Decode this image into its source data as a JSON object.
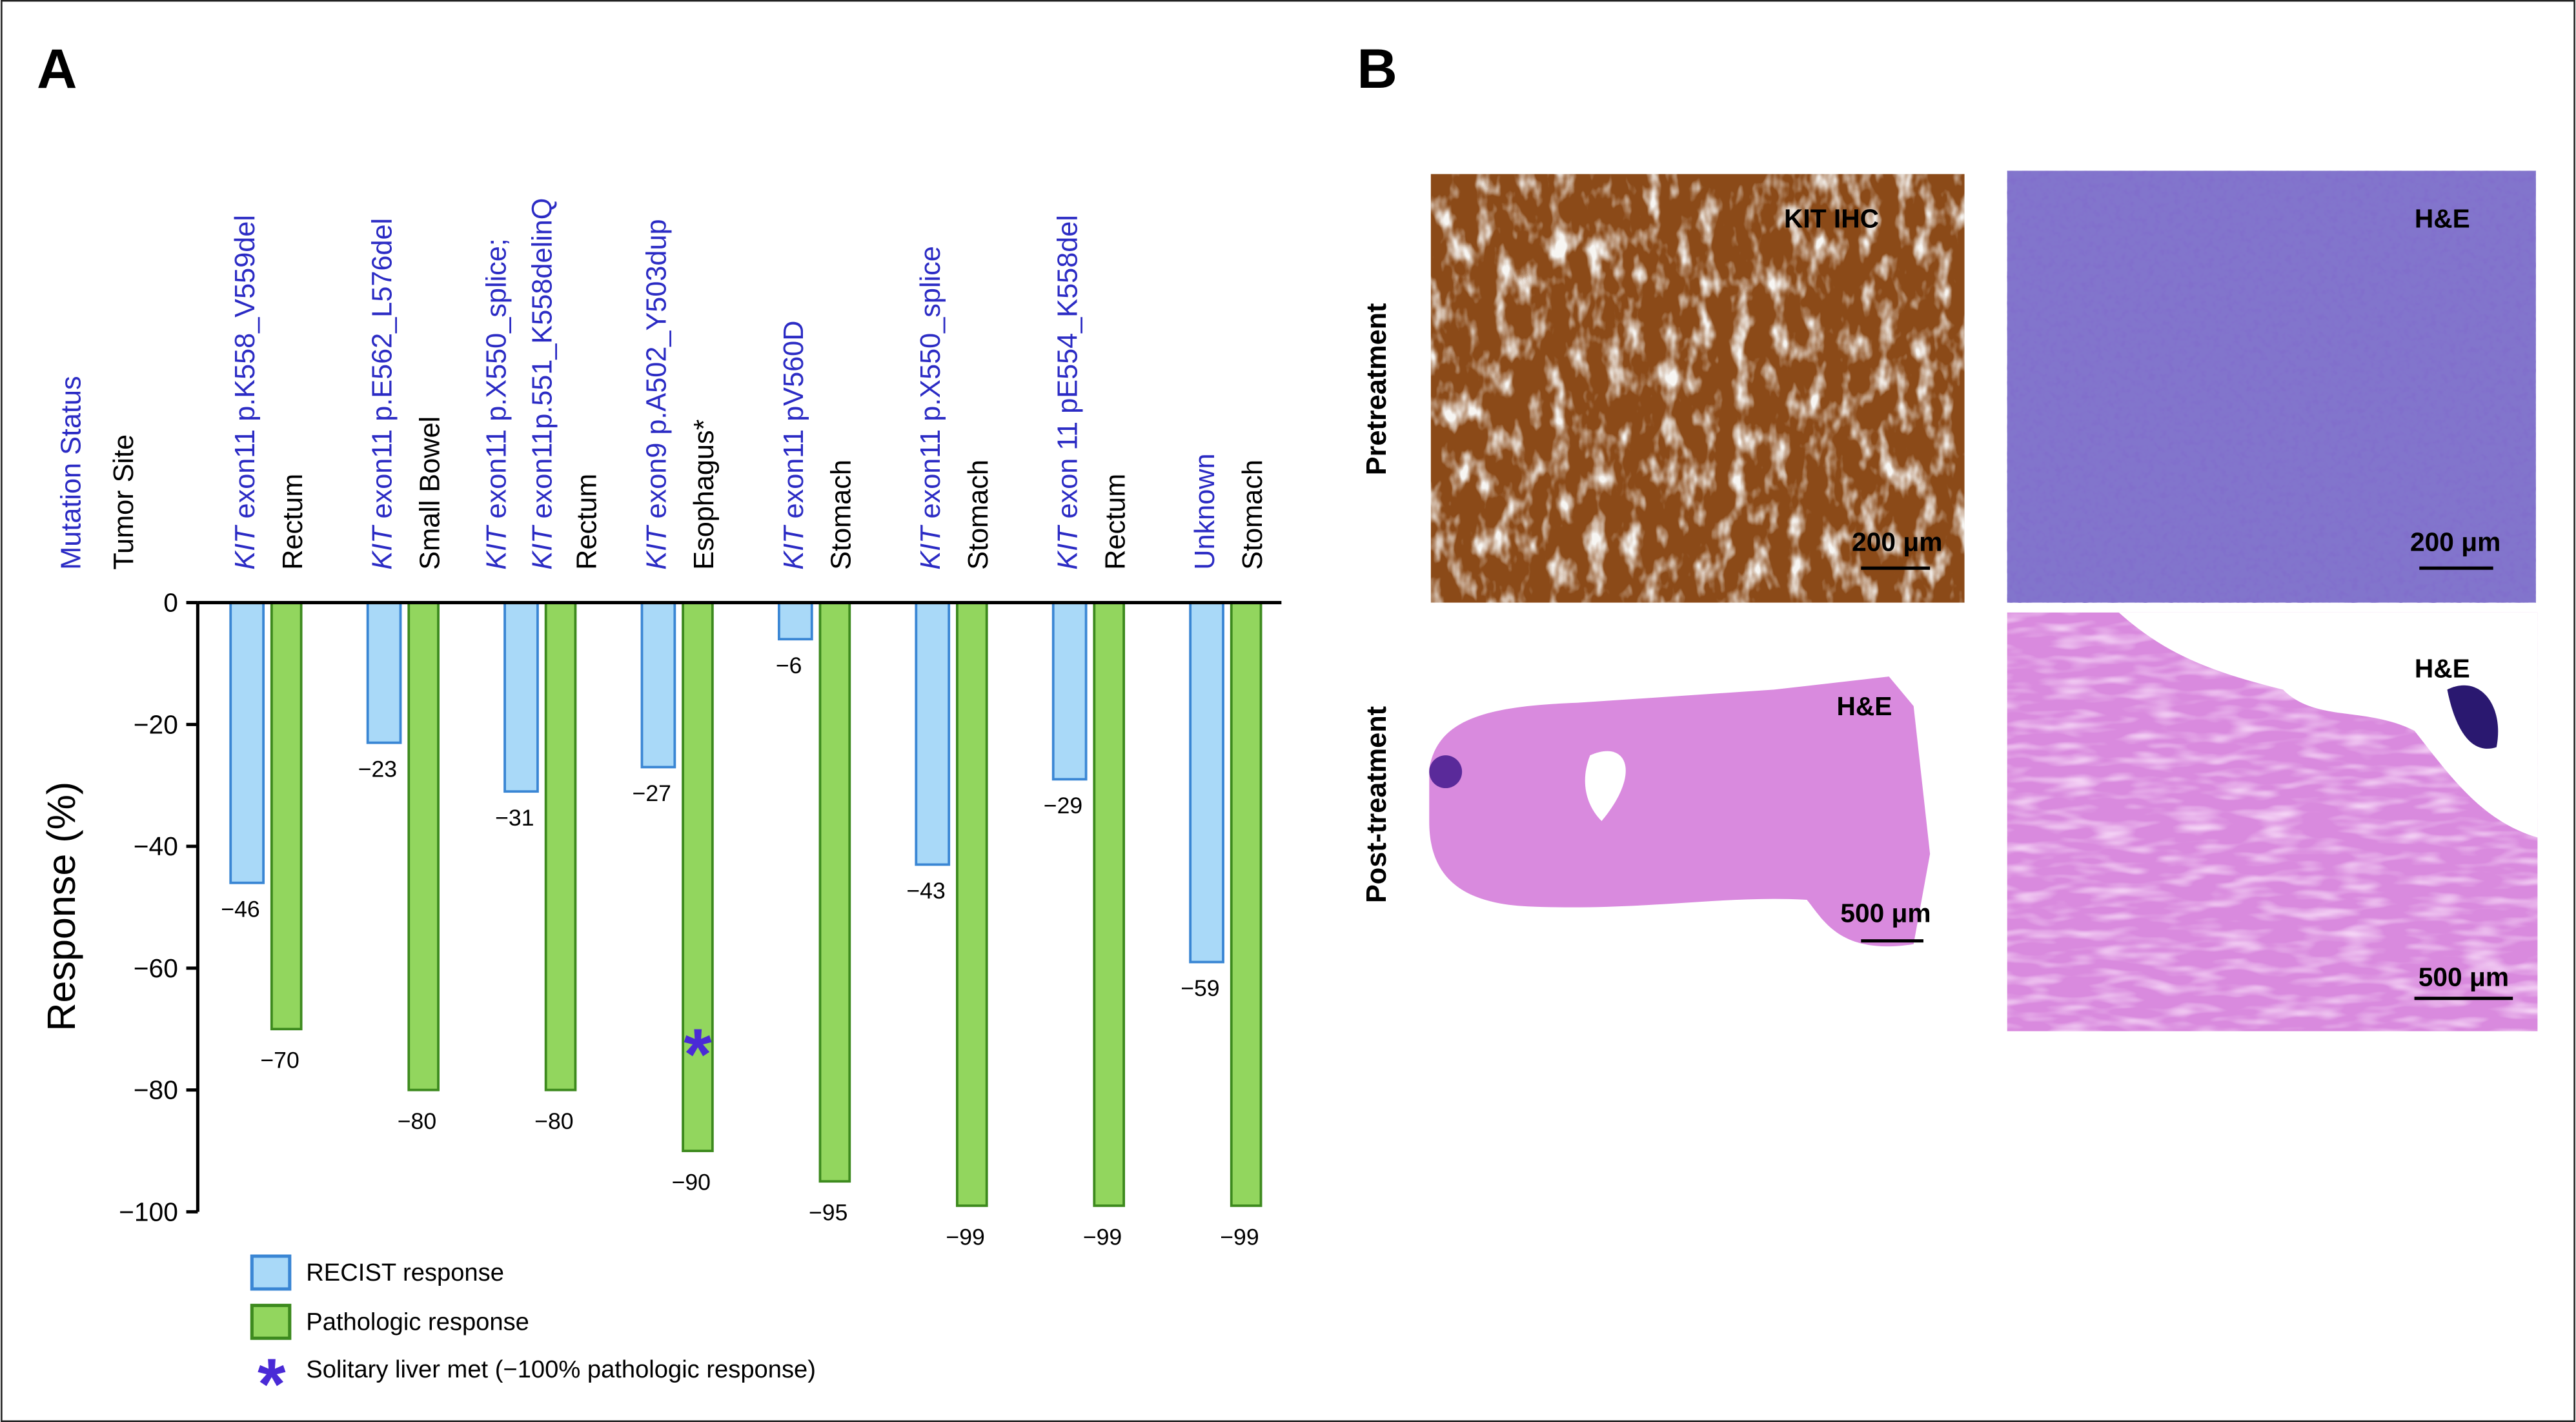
{
  "panel_labels": [
    "A",
    "B"
  ],
  "chart_data": {
    "type": "bar",
    "ylabel": "Response (%)",
    "header_labels": [
      "Mutation Status",
      "Tumor Site"
    ],
    "categories": [
      "KIT exon11 p.K558_V559del",
      "KIT exon11 p.E562_L576del",
      "KIT exon11 p.X550_splice; KIT exon11p.551_K558delinQ",
      "KIT exon9 p.A502_Y503dup",
      "KIT exon11 pV560D",
      "KIT exon11 p.X550_splice",
      "KIT exon 11 pE554_K558del",
      "Unknown"
    ],
    "tumor_sites": [
      "Rectum",
      "Small Bowel",
      "Rectum",
      "Esophagus*",
      "Stomach",
      "Stomach",
      "Rectum",
      "Stomach"
    ],
    "series": [
      {
        "name": "RECIST response",
        "color": "#a9d9f8",
        "edgecolor": "#3a86d4",
        "values": [
          -46,
          -23,
          -31,
          -27,
          -6,
          -43,
          -29,
          -59
        ],
        "value_labels": [
          "−46",
          "−23",
          "−31",
          "−27",
          "−6",
          "−43",
          "−29",
          "−59"
        ]
      },
      {
        "name": "Pathologic response",
        "color": "#92d65e",
        "edgecolor": "#3d8a1e",
        "values": [
          -70,
          -80,
          -80,
          -90,
          -95,
          -99,
          -99,
          -99
        ],
        "value_labels": [
          "−70",
          "−80",
          "−80",
          "−90",
          "−95",
          "−99",
          "−99",
          "−99"
        ]
      }
    ],
    "annotation": {
      "marker": "*",
      "text": "Solitary liver met (−100% pathologic response)",
      "category_index": 3,
      "color": "#4a2ad6"
    },
    "ylim": [
      -100,
      0
    ],
    "yticks": [
      0,
      {
        "value": -20,
        "label": "−20"
      },
      {
        "value": -40,
        "label": "−40"
      },
      {
        "value": -60,
        "label": "−60"
      },
      {
        "value": -80,
        "label": "−80"
      },
      {
        "value": -100,
        "label": "−100"
      }
    ]
  },
  "panel_b": {
    "row_labels": [
      "Pretreatment",
      "Post-treatment"
    ],
    "images": [
      {
        "label": "KIT IHC",
        "scale": "200 μm"
      },
      {
        "label": "H&E",
        "scale": "200 μm"
      },
      {
        "label": "H&E",
        "scale": "500 μm"
      },
      {
        "label": "H&E",
        "scale": "500 μm"
      }
    ]
  }
}
